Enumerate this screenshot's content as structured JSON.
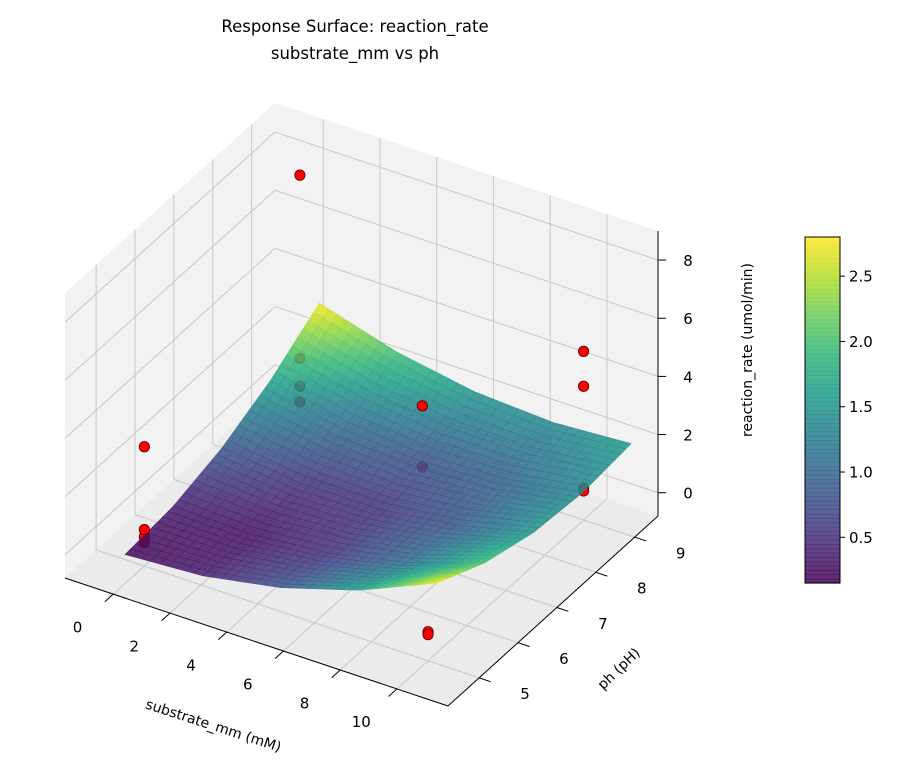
{
  "chart_data": {
    "type": "surface",
    "title": "Response Surface: reaction_rate",
    "subtitle": "substrate_mm vs ph",
    "xlabel": "substrate_mm (mM)",
    "ylabel": "ph (pH)",
    "zlabel": "reaction_rate (umol/min)",
    "xlim": [
      -1.7,
      11.8
    ],
    "ylim": [
      4.2,
      9.6
    ],
    "zlim": [
      -0.8,
      9.0
    ],
    "xticks": [
      0,
      2,
      4,
      6,
      8,
      10
    ],
    "yticks": [
      5,
      6,
      7,
      8,
      9
    ],
    "zticks": [
      0,
      2,
      4,
      6,
      8
    ],
    "grid": true,
    "colormap": "viridis",
    "surface": {
      "x": [
        0,
        2.75,
        5.5,
        8.25,
        11
      ],
      "y": [
        4.5,
        5.75,
        7,
        8.25,
        9.5
      ],
      "z": [
        [
          0.2,
          0.36,
          0.85,
          1.66,
          2.8
        ],
        [
          0.36,
          0.28,
          0.53,
          1.1,
          2.0
        ],
        [
          0.85,
          0.53,
          0.54,
          0.87,
          1.53
        ],
        [
          1.66,
          1.1,
          0.87,
          0.96,
          1.38
        ],
        [
          2.8,
          2.0,
          1.53,
          1.38,
          1.55
        ]
      ]
    },
    "points": [
      {
        "x": 0,
        "y": 5,
        "z": 0.45
      },
      {
        "x": 0,
        "y": 5,
        "z": 0.2
      },
      {
        "x": 0,
        "y": 5,
        "z": 0.0
      },
      {
        "x": 0,
        "y": 5,
        "z": 3.3
      },
      {
        "x": 0,
        "y": 9,
        "z": 1.5
      },
      {
        "x": 0,
        "y": 9,
        "z": 0.54
      },
      {
        "x": 0,
        "y": 9,
        "z": 0.0
      },
      {
        "x": 0,
        "y": 9,
        "z": 7.8
      },
      {
        "x": 5,
        "y": 8.5,
        "z": 2.1
      },
      {
        "x": 5,
        "y": 8.5,
        "z": 0.0
      },
      {
        "x": 10,
        "y": 9,
        "z": 5.0
      },
      {
        "x": 10,
        "y": 9,
        "z": 3.8
      },
      {
        "x": 10,
        "y": 9,
        "z": 0.3
      },
      {
        "x": 10,
        "y": 9,
        "z": 0.2
      },
      {
        "x": 10,
        "y": 5,
        "z": 0.2
      },
      {
        "x": 10,
        "y": 5,
        "z": 0.1
      }
    ],
    "point_color": "#ff0000",
    "colorbar": {
      "range": [
        0.15,
        2.8
      ],
      "ticks": [
        0.5,
        1.0,
        1.5,
        2.0,
        2.5
      ],
      "tick_labels": [
        "0.5",
        "1.0",
        "1.5",
        "2.0",
        "2.5"
      ]
    }
  }
}
